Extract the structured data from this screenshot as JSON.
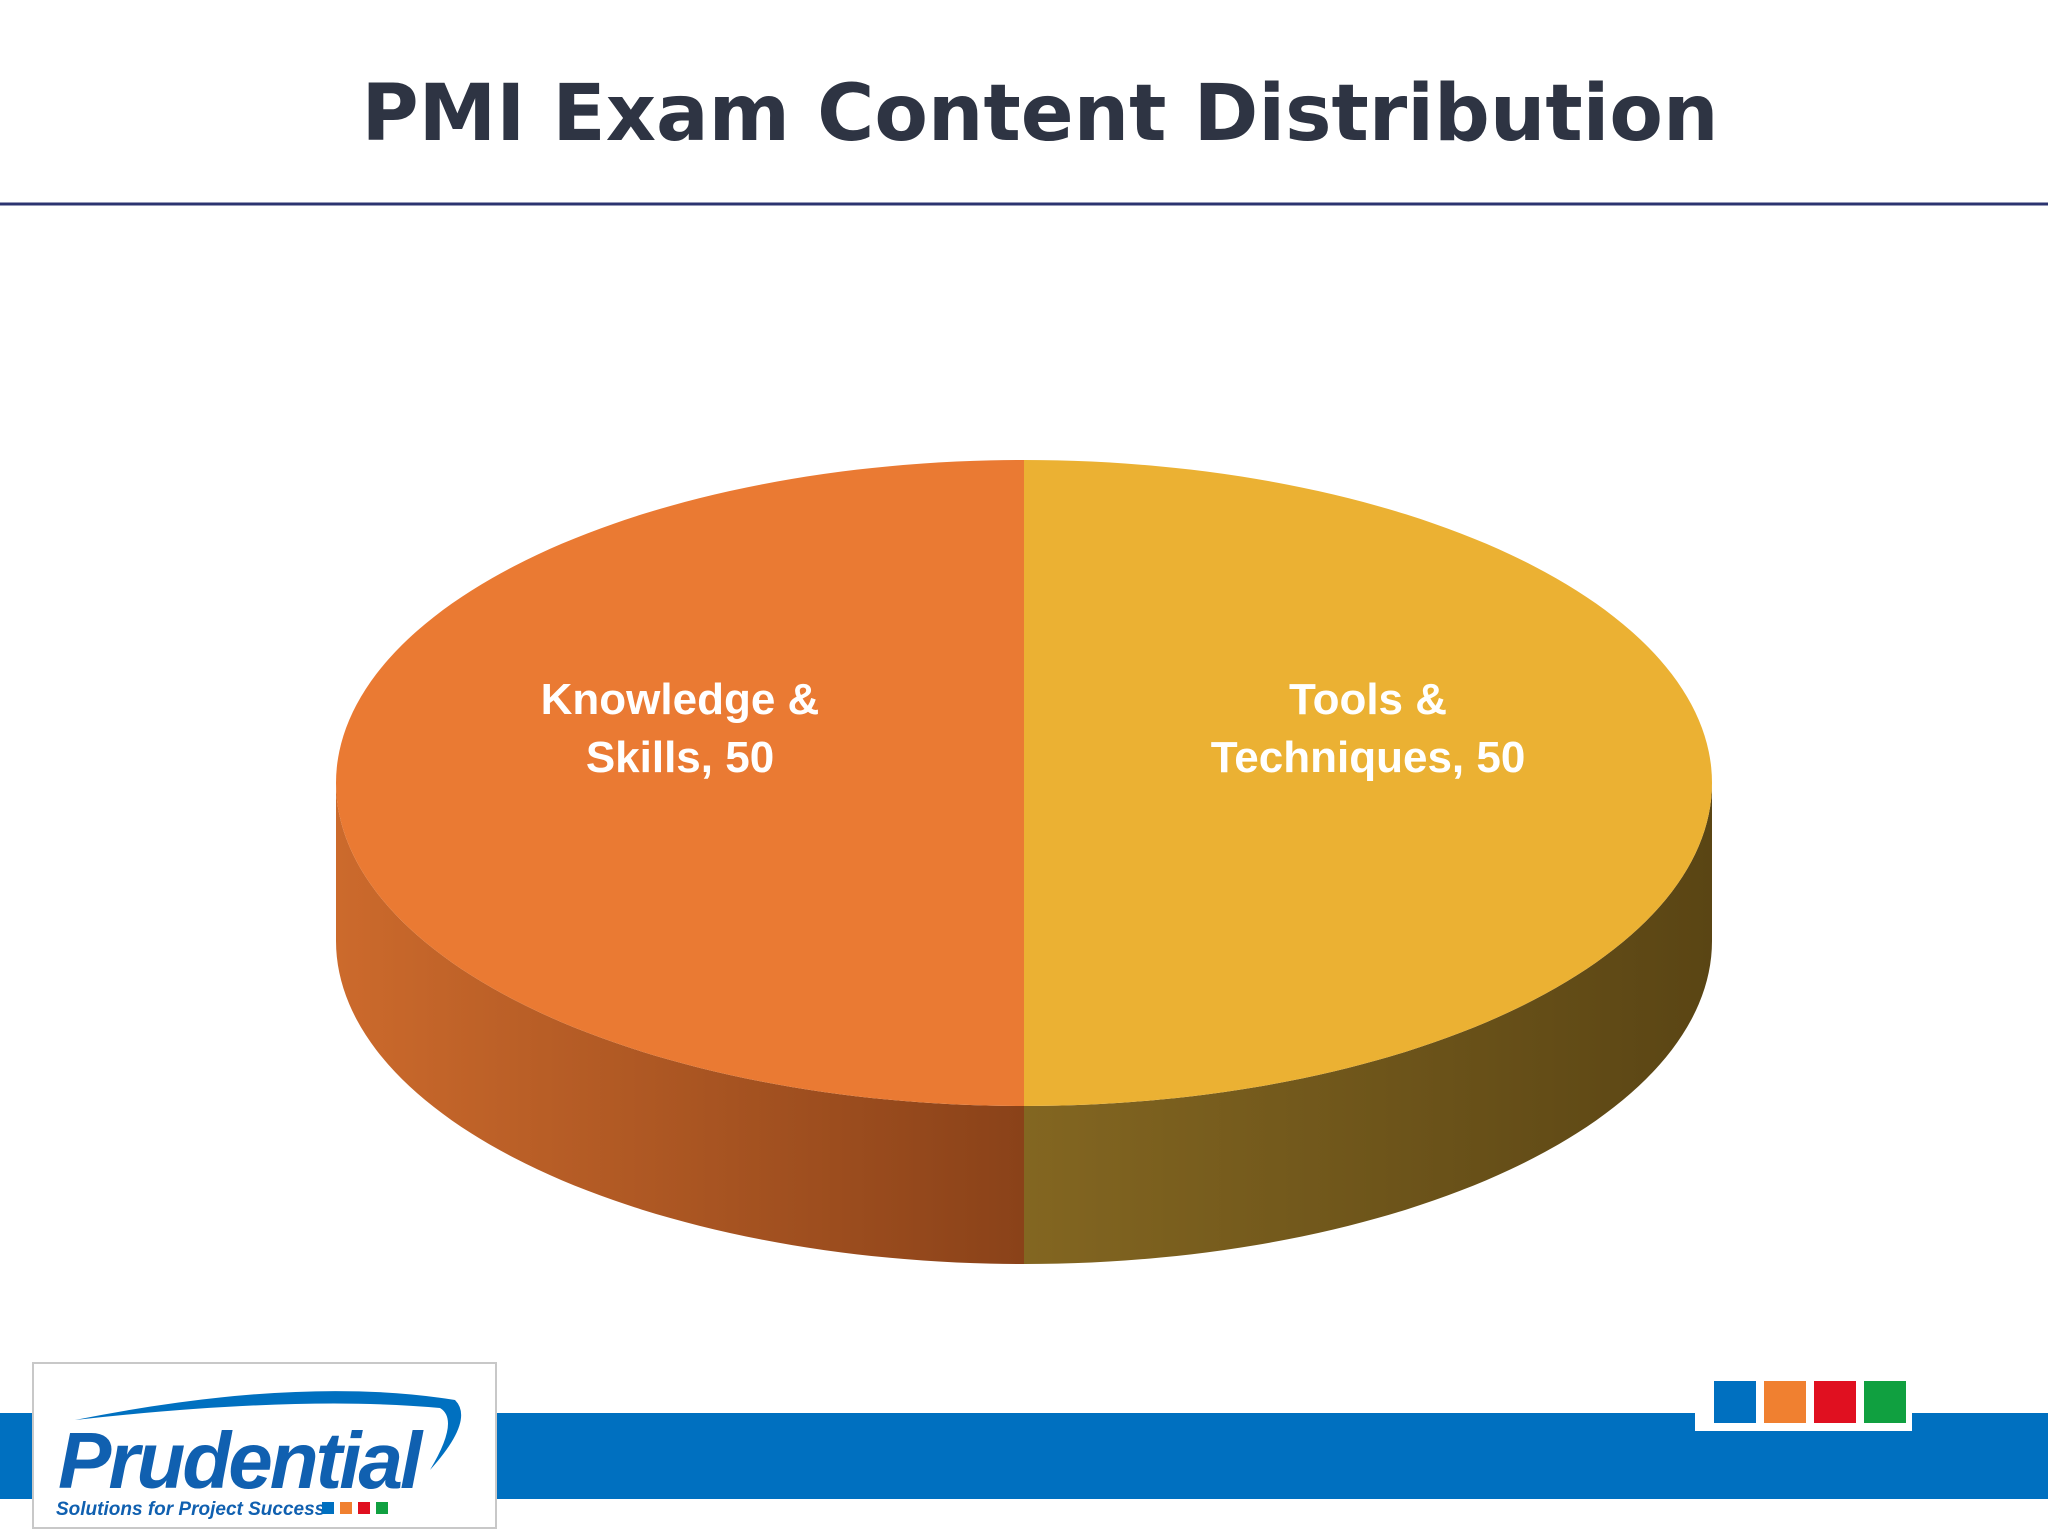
{
  "chart_data": {
    "type": "pie",
    "title": "PMI Exam Content Distribution",
    "categories": [
      "Knowledge & Skills",
      "Tools & Techniques"
    ],
    "values": [
      50,
      50
    ],
    "value_labels": [
      "Knowledge & Skills, 50",
      "Tools & Techniques, 50"
    ],
    "colors": [
      "#ea7a33",
      "#ebb133"
    ]
  },
  "logo": {
    "name": "Prudential",
    "tagline": "Solutions for Project Success"
  }
}
